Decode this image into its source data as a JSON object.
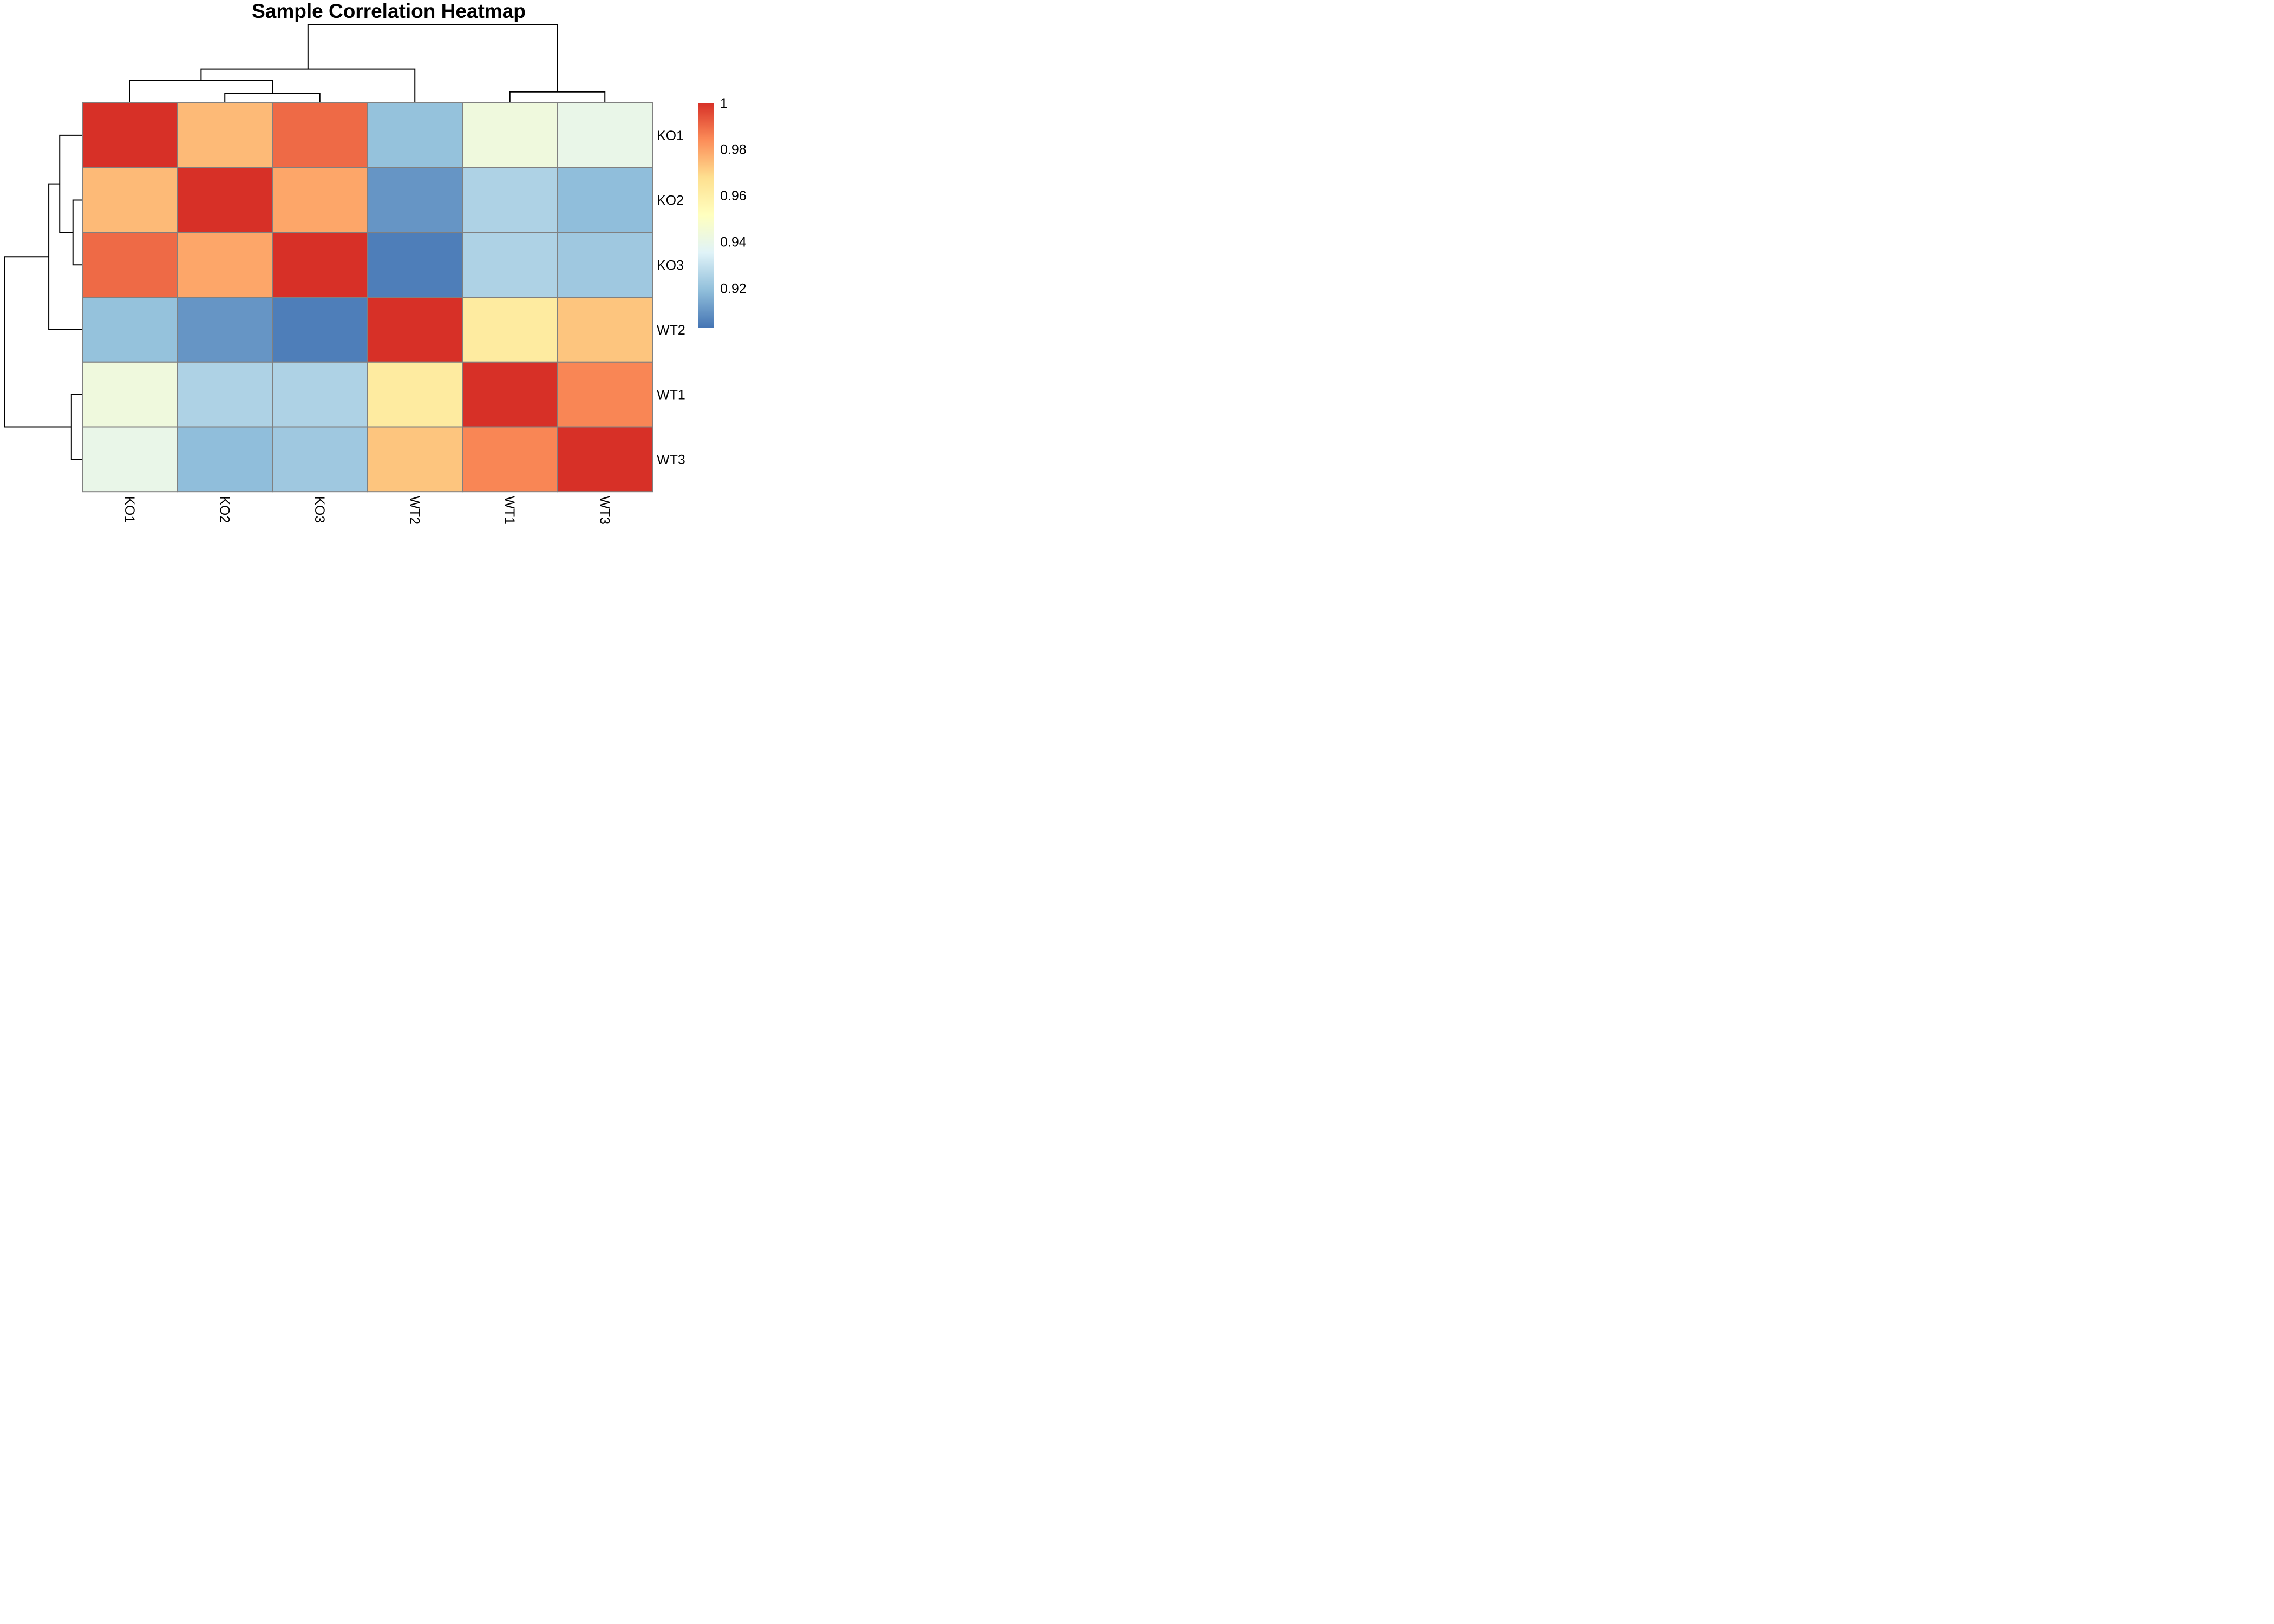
{
  "chart_data": {
    "type": "heatmap",
    "title": "Sample Correlation Heatmap",
    "row_labels": [
      "KO1",
      "KO2",
      "KO3",
      "WT2",
      "WT1",
      "WT3"
    ],
    "col_labels": [
      "KO1",
      "KO2",
      "KO3",
      "WT2",
      "WT1",
      "WT3"
    ],
    "values": [
      [
        1.0,
        0.975,
        0.99,
        0.92,
        0.943,
        0.94
      ],
      [
        0.975,
        1.0,
        0.979,
        0.91,
        0.925,
        0.919
      ],
      [
        0.99,
        0.979,
        1.0,
        0.905,
        0.925,
        0.922
      ],
      [
        0.92,
        0.91,
        0.905,
        1.0,
        0.962,
        0.973
      ],
      [
        0.943,
        0.925,
        0.925,
        0.962,
        1.0,
        0.985
      ],
      [
        0.94,
        0.919,
        0.922,
        0.973,
        0.985,
        1.0
      ]
    ],
    "colorbar": {
      "min": 0.903,
      "max": 1.0,
      "ticks": [
        1,
        0.98,
        0.96,
        0.94,
        0.92
      ],
      "tick_labels": [
        "1",
        "0.98",
        "0.96",
        "0.94",
        "0.92"
      ],
      "colors": [
        "#4575b4",
        "#91bfdb",
        "#e0f3f8",
        "#ffffbf",
        "#fee090",
        "#fc8d59",
        "#d73027"
      ]
    },
    "col_dendrogram": [
      [
        1,
        2,
        0.12
      ],
      [
        0,
        "a",
        0.29
      ],
      [
        4,
        5,
        0.14
      ],
      [
        3,
        "b",
        0.43
      ],
      [
        "c",
        "d",
        1.0
      ]
    ],
    "row_dendrogram": [
      [
        1,
        2,
        0.12
      ],
      [
        0,
        "a",
        0.29
      ],
      [
        4,
        5,
        0.14
      ],
      [
        3,
        "b",
        0.43
      ],
      [
        "c",
        "d",
        1.0
      ]
    ],
    "cell_border_color": "#808080"
  }
}
